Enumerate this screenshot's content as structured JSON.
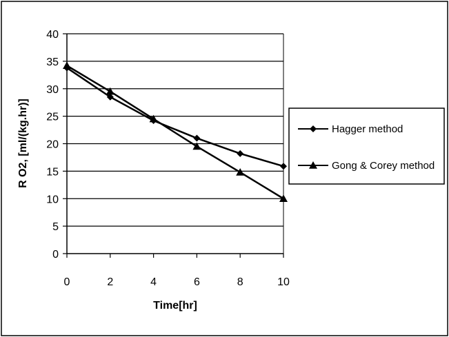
{
  "chart_data": {
    "type": "line",
    "xlabel": "Time[hr]",
    "ylabel": "R O2, [ml/(kg.hr)]",
    "x": [
      0,
      2,
      4,
      6,
      8,
      10
    ],
    "xlim": [
      0,
      10
    ],
    "ylim": [
      0,
      40
    ],
    "x_ticks": [
      "0",
      "2",
      "4",
      "6",
      "8",
      "10"
    ],
    "y_ticks": [
      "0",
      "5",
      "10",
      "15",
      "20",
      "25",
      "30",
      "35",
      "40"
    ],
    "grid": "horizontal",
    "legend_position": "right",
    "series": [
      {
        "name": "Hagger method",
        "marker": "diamond",
        "color": "#000000",
        "values": [
          33.8,
          28.5,
          24.2,
          21.0,
          18.2,
          15.9
        ]
      },
      {
        "name": "Gong & Corey method",
        "marker": "triangle",
        "color": "#000000",
        "values": [
          34.2,
          29.5,
          24.5,
          19.5,
          14.8,
          10.0
        ]
      }
    ]
  }
}
